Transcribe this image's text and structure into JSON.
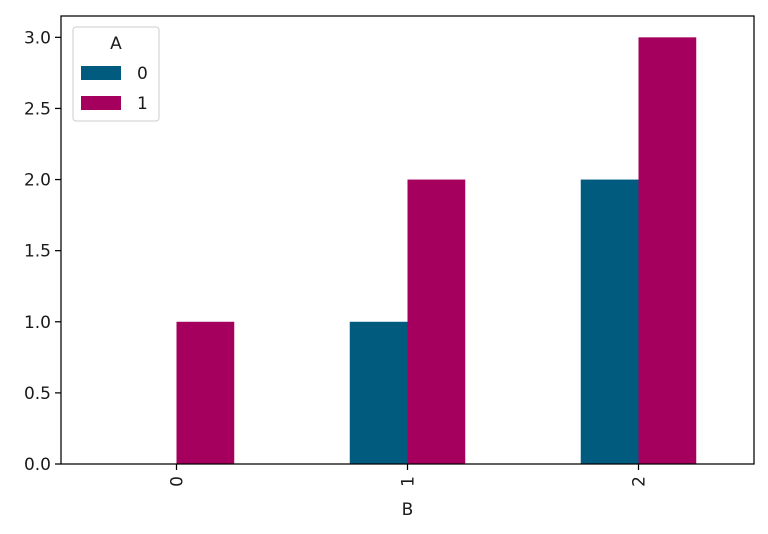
{
  "chart_data": {
    "type": "bar",
    "title": "",
    "xlabel": "B",
    "ylabel": "",
    "categories": [
      "0",
      "1",
      "2"
    ],
    "series": [
      {
        "name": "0",
        "values": [
          0,
          1,
          2
        ],
        "color": "#005b7f"
      },
      {
        "name": "1",
        "values": [
          1,
          2,
          3
        ],
        "color": "#a6005e"
      }
    ],
    "ylim": [
      0,
      3.15
    ],
    "yticks": [
      0.0,
      0.5,
      1.0,
      1.5,
      2.0,
      2.5,
      3.0
    ],
    "ytick_labels": [
      "0.0",
      "0.5",
      "1.0",
      "1.5",
      "2.0",
      "2.5",
      "3.0"
    ],
    "x_tick_rotation": "vertical",
    "legend": {
      "title": "A",
      "placement": "top-left"
    },
    "grid": false
  }
}
